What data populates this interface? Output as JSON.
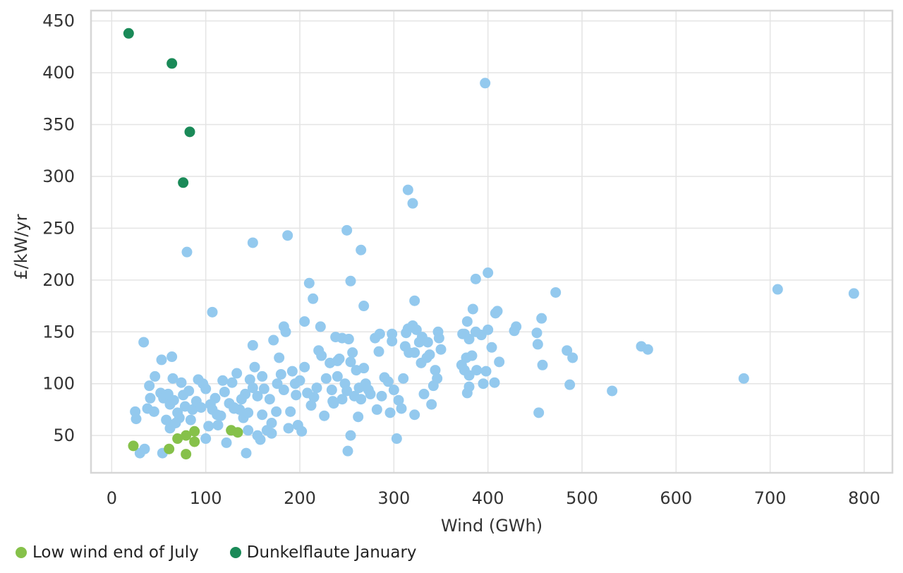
{
  "chart_data": {
    "type": "scatter",
    "title": "",
    "xlabel": "Wind (GWh)",
    "ylabel": "£/kW/yr",
    "xlim": [
      -22,
      830
    ],
    "ylim": [
      14,
      460
    ],
    "xticks": [
      0,
      100,
      200,
      300,
      400,
      500,
      600,
      700,
      800
    ],
    "yticks": [
      50,
      100,
      150,
      200,
      250,
      300,
      350,
      400,
      450
    ],
    "xtick_labels": [
      "0",
      "100",
      "200",
      "300",
      "400",
      "500",
      "600",
      "700",
      "800"
    ],
    "ytick_labels": [
      "50",
      "100",
      "150",
      "200",
      "250",
      "300",
      "350",
      "400",
      "450"
    ],
    "grid": true,
    "legend_position": "bottom-left",
    "series": [
      {
        "name": "",
        "color": "#93c9ee",
        "points": [
          [
            397,
            390
          ],
          [
            315,
            287
          ],
          [
            320,
            274
          ],
          [
            187,
            243
          ],
          [
            250,
            248
          ],
          [
            150,
            236
          ],
          [
            80,
            227
          ],
          [
            265,
            229
          ],
          [
            254,
            199
          ],
          [
            210,
            197
          ],
          [
            400,
            207
          ],
          [
            387,
            201
          ],
          [
            472,
            188
          ],
          [
            708,
            191
          ],
          [
            789,
            187
          ],
          [
            107,
            169
          ],
          [
            268,
            175
          ],
          [
            214,
            182
          ],
          [
            322,
            180
          ],
          [
            34,
            140
          ],
          [
            64,
            126
          ],
          [
            53,
            123
          ],
          [
            563,
            136
          ],
          [
            570,
            133
          ],
          [
            484,
            132
          ],
          [
            490,
            125
          ],
          [
            487,
            99
          ],
          [
            532,
            93
          ],
          [
            672,
            105
          ],
          [
            454,
            72
          ],
          [
            458,
            118
          ],
          [
            457,
            163
          ],
          [
            452,
            149
          ],
          [
            453,
            138
          ],
          [
            410,
            170
          ],
          [
            408,
            168
          ],
          [
            404,
            135
          ],
          [
            412,
            121
          ],
          [
            407,
            101
          ],
          [
            395,
            100
          ],
          [
            398,
            112
          ],
          [
            430,
            155
          ],
          [
            428,
            151
          ],
          [
            384,
            172
          ],
          [
            378,
            160
          ],
          [
            387,
            150
          ],
          [
            393,
            147
          ],
          [
            400,
            152
          ],
          [
            373,
            148
          ],
          [
            380,
            143
          ],
          [
            372,
            118
          ],
          [
            377,
            125
          ],
          [
            375,
            113
          ],
          [
            380,
            108
          ],
          [
            378,
            91
          ],
          [
            383,
            127
          ],
          [
            388,
            113
          ],
          [
            340,
            80
          ],
          [
            322,
            70
          ],
          [
            303,
            47
          ],
          [
            251,
            35
          ],
          [
            254,
            50
          ],
          [
            143,
            33
          ],
          [
            54,
            33
          ],
          [
            30,
            33
          ],
          [
            35,
            37
          ],
          [
            25,
            73
          ],
          [
            26,
            66
          ],
          [
            38,
            76
          ],
          [
            41,
            86
          ],
          [
            40,
            98
          ],
          [
            46,
            107
          ],
          [
            45,
            73
          ],
          [
            52,
            91
          ],
          [
            55,
            86
          ],
          [
            58,
            65
          ],
          [
            62,
            57
          ],
          [
            60,
            90
          ],
          [
            62,
            80
          ],
          [
            66,
            84
          ],
          [
            70,
            72
          ],
          [
            72,
            67
          ],
          [
            74,
            101
          ],
          [
            76,
            89
          ],
          [
            78,
            78
          ],
          [
            82,
            93
          ],
          [
            84,
            65
          ],
          [
            86,
            75
          ],
          [
            90,
            83
          ],
          [
            92,
            104
          ],
          [
            95,
            77
          ],
          [
            97,
            100
          ],
          [
            100,
            47
          ],
          [
            103,
            59
          ],
          [
            107,
            75
          ],
          [
            110,
            86
          ],
          [
            113,
            60
          ],
          [
            116,
            69
          ],
          [
            118,
            103
          ],
          [
            120,
            92
          ],
          [
            122,
            43
          ],
          [
            125,
            81
          ],
          [
            128,
            101
          ],
          [
            130,
            77
          ],
          [
            133,
            110
          ],
          [
            136,
            75
          ],
          [
            140,
            67
          ],
          [
            142,
            90
          ],
          [
            145,
            72
          ],
          [
            147,
            104
          ],
          [
            150,
            96
          ],
          [
            150,
            137
          ],
          [
            152,
            116
          ],
          [
            155,
            88
          ],
          [
            158,
            46
          ],
          [
            160,
            107
          ],
          [
            162,
            95
          ],
          [
            165,
            55
          ],
          [
            168,
            85
          ],
          [
            170,
            62
          ],
          [
            172,
            142
          ],
          [
            175,
            73
          ],
          [
            176,
            100
          ],
          [
            178,
            125
          ],
          [
            180,
            109
          ],
          [
            183,
            94
          ],
          [
            183,
            155
          ],
          [
            185,
            150
          ],
          [
            188,
            57
          ],
          [
            190,
            73
          ],
          [
            192,
            112
          ],
          [
            195,
            100
          ],
          [
            198,
            60
          ],
          [
            200,
            103
          ],
          [
            202,
            54
          ],
          [
            205,
            116
          ],
          [
            205,
            160
          ],
          [
            208,
            91
          ],
          [
            212,
            79
          ],
          [
            215,
            87
          ],
          [
            218,
            96
          ],
          [
            220,
            132
          ],
          [
            222,
            155
          ],
          [
            223,
            127
          ],
          [
            226,
            69
          ],
          [
            228,
            105
          ],
          [
            232,
            120
          ],
          [
            234,
            94
          ],
          [
            236,
            81
          ],
          [
            238,
            145
          ],
          [
            240,
            107
          ],
          [
            242,
            124
          ],
          [
            245,
            85
          ],
          [
            245,
            144
          ],
          [
            248,
            100
          ],
          [
            250,
            93
          ],
          [
            252,
            143
          ],
          [
            254,
            121
          ],
          [
            256,
            130
          ],
          [
            258,
            88
          ],
          [
            260,
            113
          ],
          [
            262,
            68
          ],
          [
            263,
            96
          ],
          [
            265,
            85
          ],
          [
            268,
            115
          ],
          [
            270,
            100
          ],
          [
            273,
            94
          ],
          [
            275,
            90
          ],
          [
            280,
            144
          ],
          [
            282,
            75
          ],
          [
            284,
            131
          ],
          [
            285,
            148
          ],
          [
            287,
            88
          ],
          [
            290,
            106
          ],
          [
            294,
            102
          ],
          [
            296,
            72
          ],
          [
            298,
            141
          ],
          [
            298,
            148
          ],
          [
            300,
            94
          ],
          [
            305,
            84
          ],
          [
            308,
            76
          ],
          [
            310,
            105
          ],
          [
            312,
            136
          ],
          [
            313,
            149
          ],
          [
            315,
            153
          ],
          [
            316,
            130
          ],
          [
            320,
            156
          ],
          [
            322,
            130
          ],
          [
            324,
            152
          ],
          [
            327,
            140
          ],
          [
            329,
            120
          ],
          [
            330,
            145
          ],
          [
            332,
            90
          ],
          [
            335,
            125
          ],
          [
            336,
            140
          ],
          [
            338,
            128
          ],
          [
            342,
            98
          ],
          [
            344,
            113
          ],
          [
            346,
            105
          ],
          [
            347,
            150
          ],
          [
            348,
            144
          ],
          [
            350,
            133
          ],
          [
            380,
            97
          ],
          [
            375,
            148
          ],
          [
            240,
            122
          ],
          [
            235,
            83
          ],
          [
            196,
            89
          ],
          [
            130,
            76
          ],
          [
            138,
            85
          ],
          [
            145,
            55
          ],
          [
            155,
            50
          ],
          [
            160,
            70
          ],
          [
            170,
            52
          ],
          [
            65,
            105
          ],
          [
            68,
            62
          ],
          [
            100,
            95
          ],
          [
            105,
            80
          ],
          [
            112,
            70
          ]
        ]
      },
      {
        "name": "Low wind end of July",
        "color": "#86c14a",
        "points": [
          [
            23,
            40
          ],
          [
            61,
            37
          ],
          [
            70,
            47
          ],
          [
            79,
            50
          ],
          [
            88,
            54
          ],
          [
            88,
            44
          ],
          [
            79,
            32
          ],
          [
            127,
            55
          ],
          [
            134,
            53
          ]
        ]
      },
      {
        "name": "Dunkelflaute January",
        "color": "#1a8a58",
        "points": [
          [
            18,
            438
          ],
          [
            64,
            409
          ],
          [
            83,
            343
          ],
          [
            76,
            294
          ]
        ]
      }
    ]
  }
}
